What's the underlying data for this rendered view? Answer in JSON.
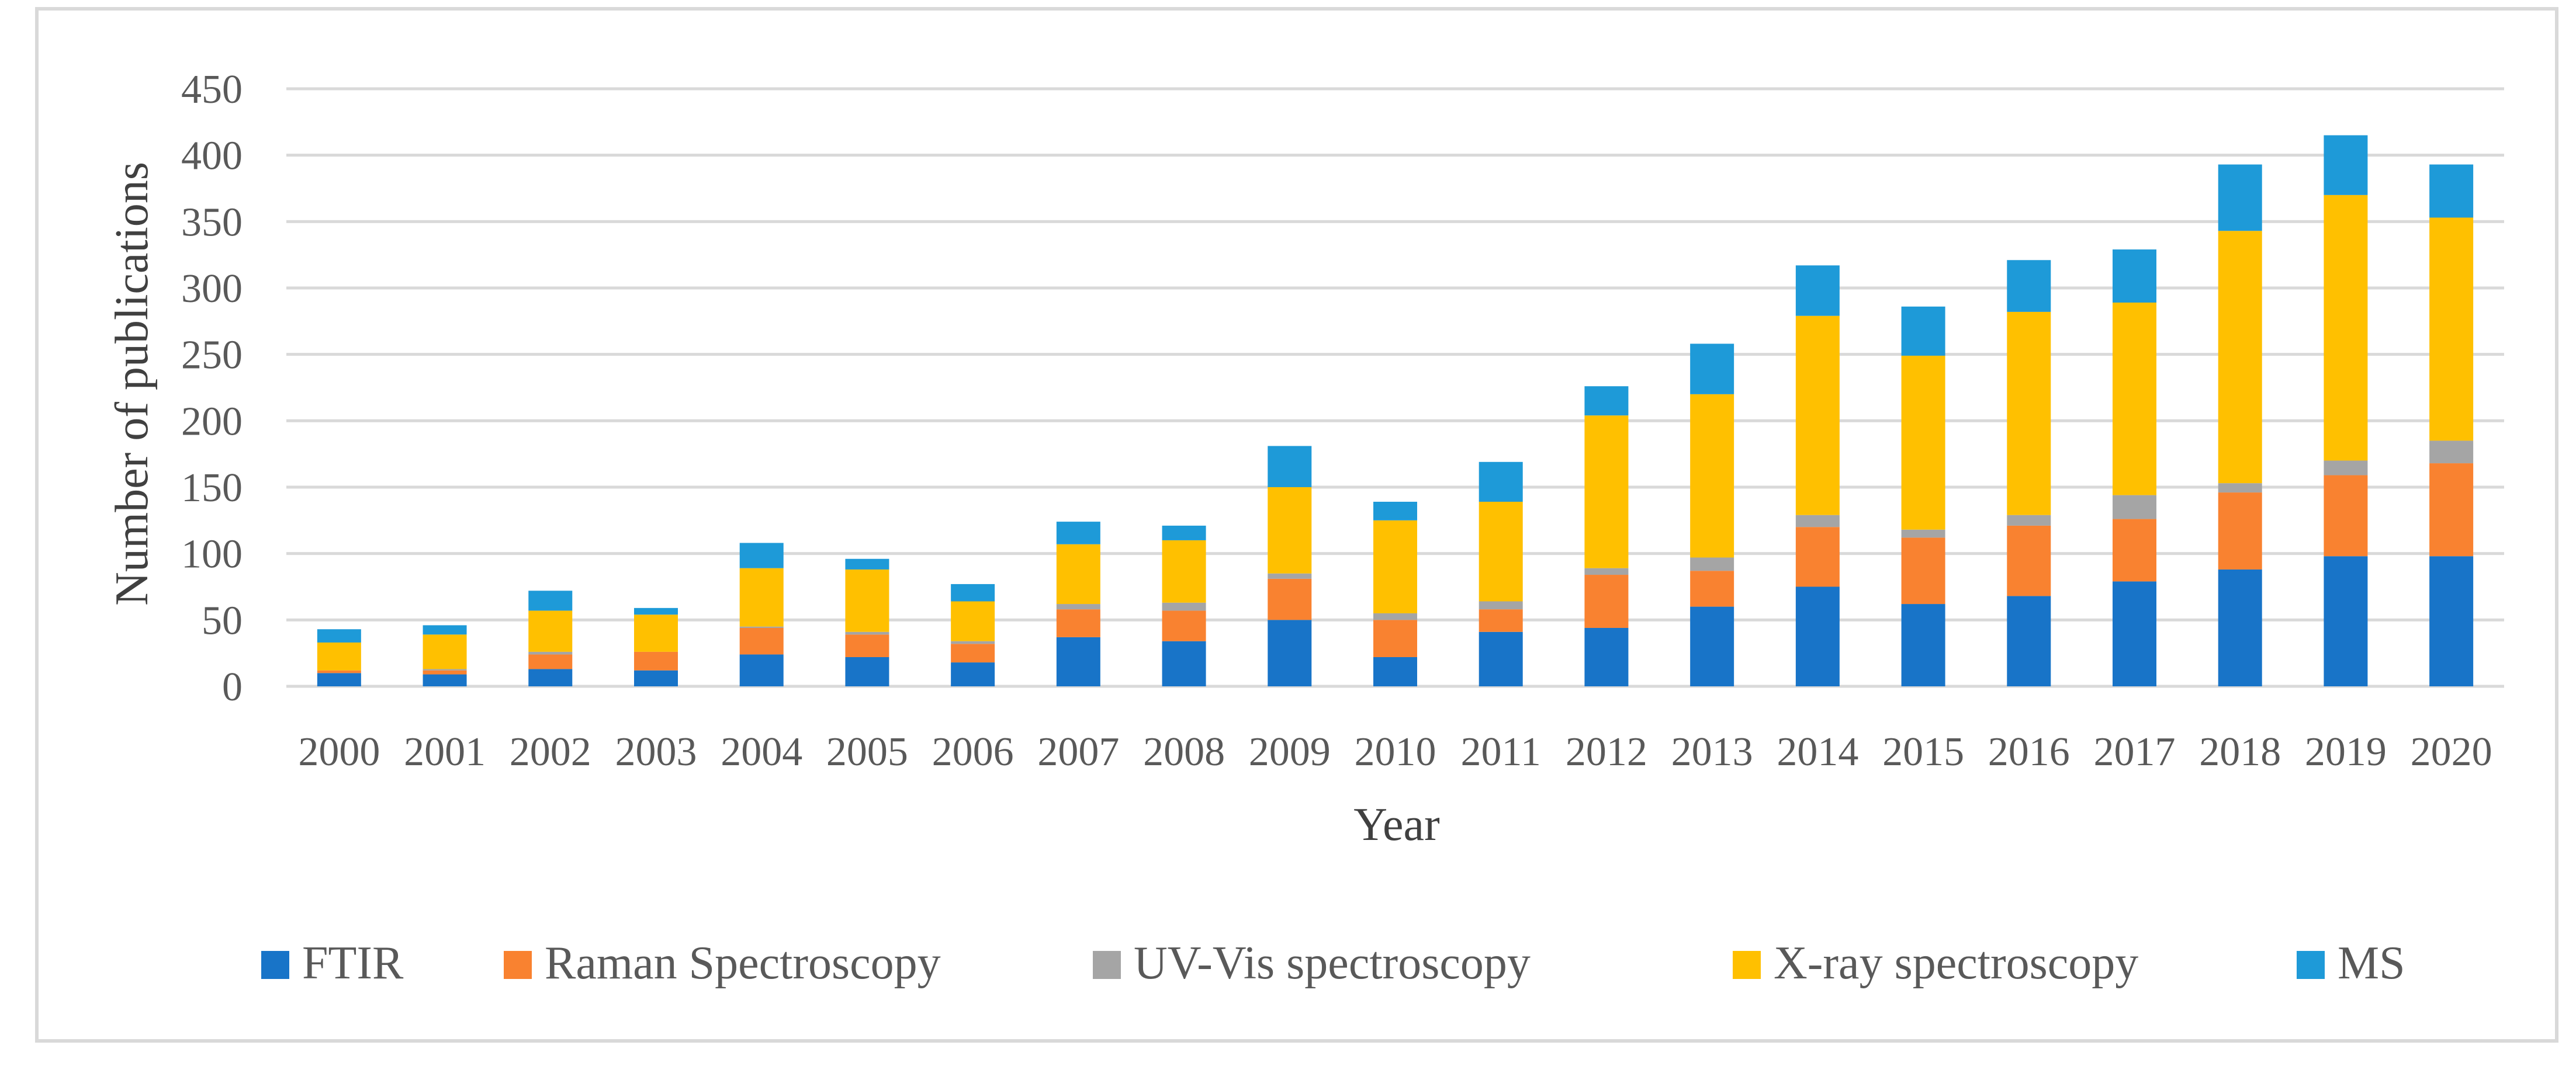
{
  "chart_data": {
    "type": "bar",
    "stacked": true,
    "title": "",
    "xlabel": "Year",
    "ylabel": "Number of publications",
    "ylim": [
      0,
      450
    ],
    "yticks": [
      0,
      50,
      100,
      150,
      200,
      250,
      300,
      350,
      400,
      450
    ],
    "grid": true,
    "legend_position": "bottom",
    "categories": [
      "2000",
      "2001",
      "2002",
      "2003",
      "2004",
      "2005",
      "2006",
      "2007",
      "2008",
      "2009",
      "2010",
      "2011",
      "2012",
      "2013",
      "2014",
      "2015",
      "2016",
      "2017",
      "2018",
      "2019",
      "2020"
    ],
    "series": [
      {
        "name": "FTIR",
        "color": "#1874c8",
        "values": [
          10,
          9,
          13,
          12,
          24,
          22,
          18,
          37,
          34,
          50,
          22,
          41,
          44,
          60,
          75,
          62,
          68,
          79,
          88,
          98,
          98
        ]
      },
      {
        "name": "Raman Spectroscopy",
        "color": "#f98230",
        "values": [
          2,
          3,
          11,
          14,
          20,
          17,
          14,
          21,
          23,
          31,
          28,
          17,
          40,
          27,
          45,
          50,
          53,
          47,
          58,
          61,
          70
        ]
      },
      {
        "name": "UV-Vis spectroscopy",
        "color": "#a5a5a5",
        "values": [
          0,
          1,
          2,
          0,
          1,
          2,
          2,
          4,
          6,
          4,
          5,
          6,
          5,
          10,
          9,
          6,
          8,
          18,
          7,
          11,
          17
        ]
      },
      {
        "name": "X-ray spectroscopy",
        "color": "#ffc000",
        "values": [
          21,
          26,
          31,
          28,
          44,
          47,
          30,
          45,
          47,
          65,
          70,
          75,
          115,
          123,
          150,
          131,
          153,
          145,
          190,
          200,
          168
        ]
      },
      {
        "name": "MS",
        "color": "#1e9ad8",
        "values": [
          10,
          7,
          15,
          5,
          19,
          8,
          13,
          17,
          11,
          31,
          14,
          30,
          22,
          38,
          38,
          37,
          39,
          40,
          50,
          45,
          40
        ]
      }
    ]
  }
}
